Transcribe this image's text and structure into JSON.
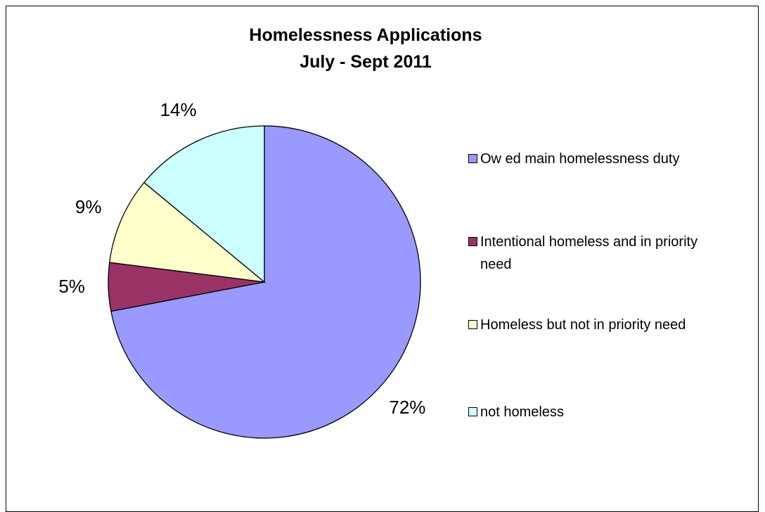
{
  "chart_data": {
    "type": "pie",
    "title": "Homelessness Applications",
    "subtitle": "July - Sept 2011",
    "categories": [
      "Ow ed main homelessness duty",
      "Intentional homeless and in priority need",
      "Homeless but not in priority need",
      "not homeless"
    ],
    "values": [
      72,
      5,
      9,
      14
    ],
    "value_labels": [
      "72%",
      "5%",
      "9%",
      "14%"
    ],
    "colors": [
      "#9999ff",
      "#993366",
      "#ffffcc",
      "#ccffff"
    ],
    "legend_position": "right",
    "start_angle_deg": 0,
    "direction": "clockwise"
  }
}
